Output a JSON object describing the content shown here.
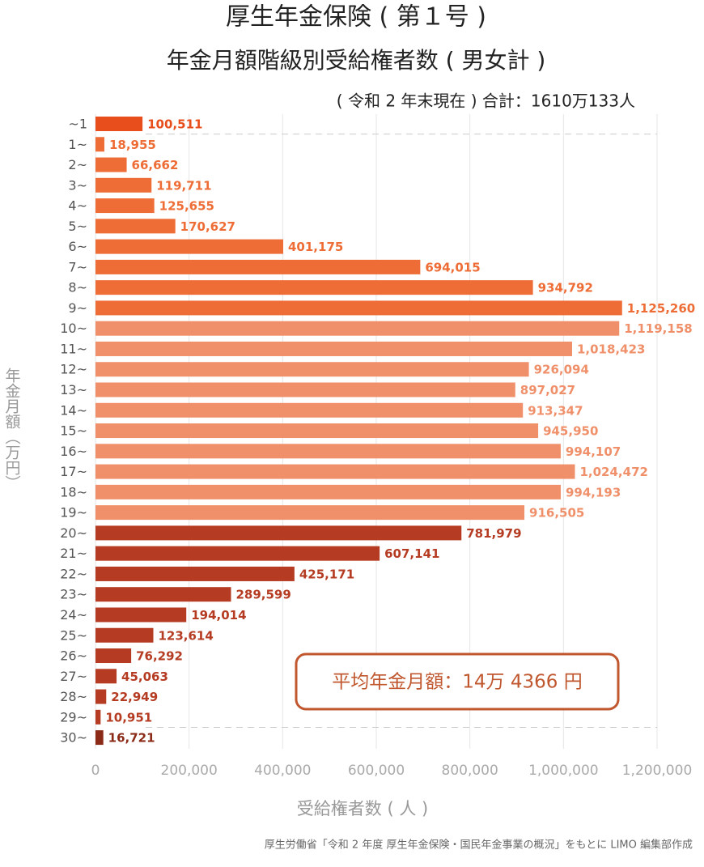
{
  "chart_data": {
    "type": "bar",
    "orientation": "horizontal",
    "title": "厚生年金保険 ( 第１号 )",
    "subtitle": "年金月額階級別受給権者数 ( 男女計 )",
    "note": "( 令和 2 年末現在 ) 合計：1610万133人",
    "annotation": "平均年金月額：14万 4366 円",
    "x_label": "受給権者数 ( 人 )",
    "y_label": "年金月額（万円）",
    "source": "厚生労働省「令和 2 年度 厚生年金保険・国民年金事業の概況」をもとに LIMO 編集部作成",
    "categories": [
      "~1",
      "1~",
      "2~",
      "3~",
      "4~",
      "5~",
      "6~",
      "7~",
      "8~",
      "9~",
      "10~",
      "11~",
      "12~",
      "13~",
      "14~",
      "15~",
      "16~",
      "17~",
      "18~",
      "19~",
      "20~",
      "21~",
      "22~",
      "23~",
      "24~",
      "25~",
      "26~",
      "27~",
      "28~",
      "29~",
      "30~"
    ],
    "values": [
      100511,
      18955,
      66662,
      119711,
      125655,
      170627,
      401175,
      694015,
      934792,
      1125260,
      1119158,
      1018423,
      926094,
      897027,
      913347,
      945950,
      994107,
      1024472,
      994193,
      916505,
      781979,
      607141,
      425171,
      289599,
      194014,
      123614,
      76292,
      45063,
      22949,
      10951,
      16721
    ],
    "value_labels": [
      "100,511",
      "18,955",
      "66,662",
      "119,711",
      "125,655",
      "170,627",
      "401,175",
      "694,015",
      "934,792",
      "1,125,260",
      "1,119,158",
      "1,018,423",
      "926,094",
      "897,027",
      "913,347",
      "945,950",
      "994,107",
      "1,024,472",
      "994,193",
      "916,505",
      "781,979",
      "607,141",
      "425,171",
      "289,599",
      "194,014",
      "123,614",
      "76,292",
      "45,063",
      "22,949",
      "10,951",
      "16,721"
    ],
    "colors": [
      "#e84e1b",
      "#ee6c35",
      "#ee6c35",
      "#ee6c35",
      "#ee6c35",
      "#ee6c35",
      "#ee6c35",
      "#ee6c35",
      "#ee6c35",
      "#ee6c35",
      "#f0906a",
      "#f0906a",
      "#f0906a",
      "#f0906a",
      "#f0906a",
      "#f0906a",
      "#f0906a",
      "#f0906a",
      "#f0906a",
      "#f0906a",
      "#b53c22",
      "#b53c22",
      "#b53c22",
      "#b53c22",
      "#b53c22",
      "#b53c22",
      "#b53c22",
      "#b53c22",
      "#b53c22",
      "#b53c22",
      "#8a2a17"
    ],
    "xlim": [
      0,
      1200000
    ],
    "xticks": [
      0,
      {
        "value": 200000,
        "label": "200,000"
      },
      {
        "value": 400000,
        "label": "400,000"
      },
      {
        "value": 600000,
        "label": "600,000"
      },
      {
        "value": 800000,
        "label": "800,000"
      },
      {
        "value": 1000000,
        "label": "1,000,000"
      },
      {
        "value": 1200000,
        "label": "1,200,000"
      }
    ],
    "grid": true
  }
}
